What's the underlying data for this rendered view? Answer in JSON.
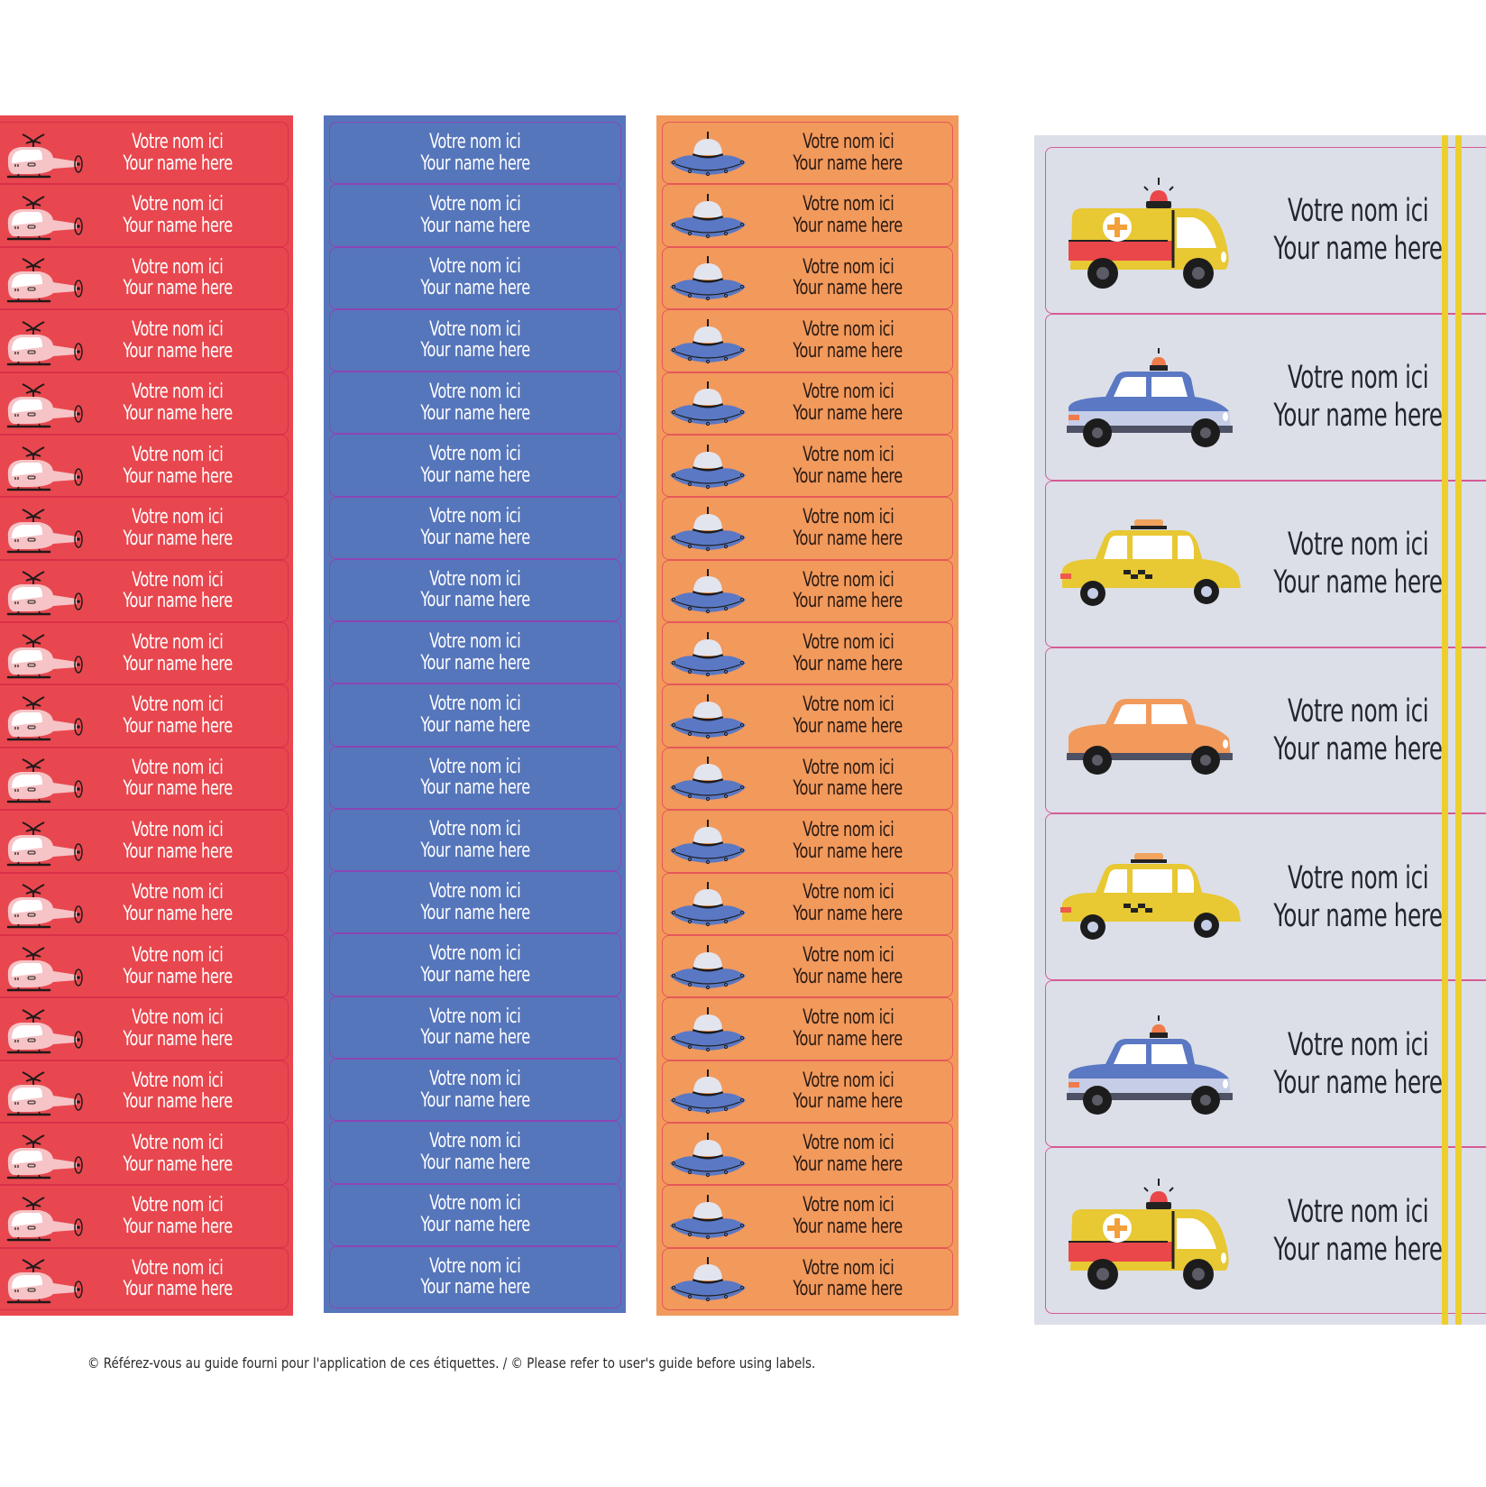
{
  "label_text": {
    "line_fr": "Votre nom ici",
    "line_en": "Your name here"
  },
  "colors": {
    "red_sheet": "#e8474f",
    "blue_sheet": "#5676bb",
    "orange_sheet": "#f2995c",
    "grey_sheet": "#dcdfe7",
    "road_line": "#eccf2f"
  },
  "columns": [
    {
      "name": "red",
      "icon": "helicopter-icon",
      "label_count": 19
    },
    {
      "name": "blue",
      "icon": "none",
      "label_count": 19
    },
    {
      "name": "orange",
      "icon": "ufo-icon",
      "label_count": 19
    },
    {
      "name": "grey",
      "label_count": 7,
      "icons": [
        "ambulance-icon",
        "police-car-icon",
        "taxi-icon",
        "orange-car-icon",
        "taxi-icon",
        "police-car-icon",
        "ambulance-icon"
      ]
    }
  ],
  "footer": {
    "notice": "© Référez-vous au guide fourni pour l'application de ces étiquettes. / © Please refer to user's guide before using labels."
  }
}
